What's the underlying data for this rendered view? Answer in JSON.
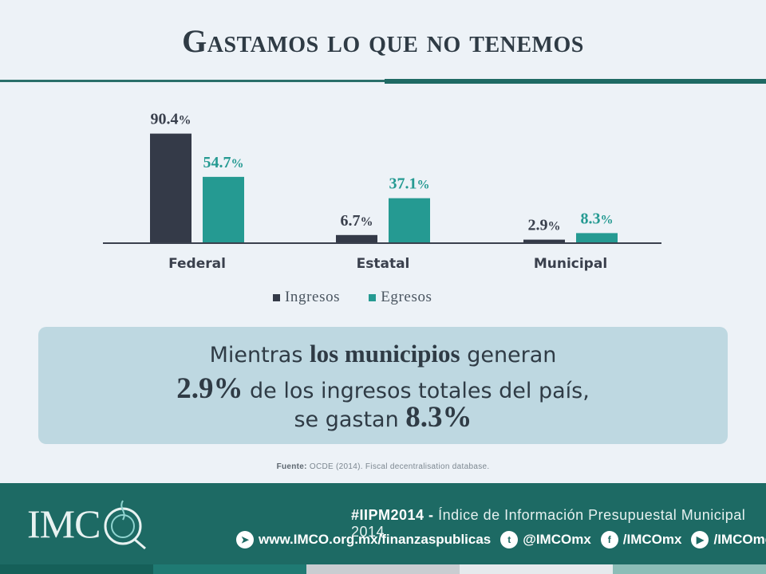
{
  "title": "Gastamos lo que no tenemos",
  "chart_data": {
    "type": "bar",
    "categories": [
      "Federal",
      "Estatal",
      "Municipal"
    ],
    "series": [
      {
        "name": "Ingresos",
        "values": [
          90.4,
          6.7,
          2.9
        ],
        "color": "#343a48"
      },
      {
        "name": "Egresos",
        "values": [
          54.7,
          37.1,
          8.3
        ],
        "color": "#259a92"
      }
    ],
    "value_suffix": "%",
    "ylim": [
      0,
      100
    ],
    "grid": false,
    "legend_position": "bottom",
    "xlabel": "",
    "ylabel": ""
  },
  "callout": {
    "line1_a": "Mientras ",
    "line1_b": "los municipios",
    "line1_c": " generan",
    "line2_a": "2.9%",
    "line2_b": " de los ingresos totales del país,",
    "line3_a": "se gastan ",
    "line3_b": "8.3%"
  },
  "source": {
    "label": "Fuente:",
    "text": " OCDE (2014). Fiscal decentralisation database."
  },
  "footer": {
    "logo": "IMC",
    "hashtag": "#IIPM2014 -",
    "tagline": " Índice de Información Presupuestal Municipal 2014",
    "links": [
      {
        "icon": "send-icon",
        "text": "www.IMCO.org.mx/finanzaspublicas"
      },
      {
        "icon": "twitter-icon",
        "text": "@IMCOmx"
      },
      {
        "icon": "facebook-icon",
        "text": "/IMCOmx"
      },
      {
        "icon": "youtube-icon",
        "text": "/IMCOmexico"
      }
    ]
  },
  "colors": {
    "dark": "#343a48",
    "teal": "#259a92",
    "footer": "#1d6a64",
    "callout": "#bed8e1"
  }
}
